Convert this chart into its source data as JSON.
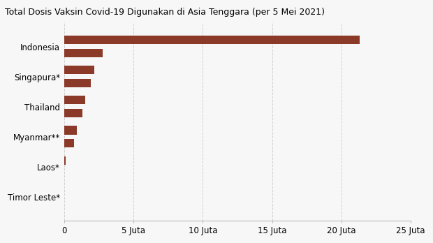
{
  "title": "Total Dosis Vaksin Covid-19 Digunakan di Asia Tenggara (per 5 Mei 2021)",
  "bar_color": "#8B3A2A",
  "background_color": "#f7f7f7",
  "xlim": [
    0,
    25000000
  ],
  "xticks": [
    0,
    5000000,
    10000000,
    15000000,
    20000000,
    25000000
  ],
  "xtick_labels": [
    "0",
    "5 Juta",
    "10 Juta",
    "15 Juta",
    "20 Juta",
    "25 Juta"
  ],
  "groups": [
    {
      "label": "Indonesia",
      "bar1": 21300000,
      "bar2": 2800000
    },
    {
      "label": "Singapura*",
      "bar1": 2200000,
      "bar2": 1900000
    },
    {
      "label": "Thailand",
      "bar1": 1500000,
      "bar2": 1300000
    },
    {
      "label": "Myanmar**",
      "bar1": 900000,
      "bar2": 700000
    },
    {
      "label": "Laos*",
      "bar1": 120000,
      "bar2": 0
    },
    {
      "label": "Timor Leste*",
      "bar1": 0,
      "bar2": 0
    }
  ]
}
